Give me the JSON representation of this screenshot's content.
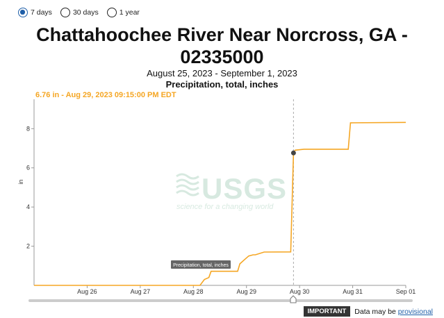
{
  "range_options": [
    {
      "label": "7 days",
      "checked": true
    },
    {
      "label": "30 days",
      "checked": false
    },
    {
      "label": "1 year",
      "checked": false
    }
  ],
  "footer": {
    "badge": "IMPORTANT",
    "note": "Data may be",
    "link": "provisional"
  },
  "watermark": {
    "text": "USGS",
    "tagline": "science for a changing world"
  },
  "tooltip_label": "Precipitation, total, inches",
  "readout": "6.76 in - Aug 29, 2023 09:15:00 PM EDT",
  "colors": {
    "series": "#f5a623",
    "marker": "#444444",
    "accent": "#1f5fa8"
  },
  "chart_data": {
    "type": "line",
    "title": "Chattahoochee River Near Norcross, GA - 02335000",
    "subtitle": "August 25, 2023 - September 1, 2023",
    "parameter": "Precipitation, total, inches",
    "ylabel": "in",
    "ylim": [
      0,
      9.5
    ],
    "yticks": [
      2,
      4,
      6,
      8
    ],
    "xlim": [
      "2023-08-25",
      "2023-09-01"
    ],
    "xticks": [
      "Aug 26",
      "Aug 27",
      "Aug 28",
      "Aug 29",
      "Aug 30",
      "Aug 31",
      "Sep 01"
    ],
    "series": [
      {
        "x": [
          "2023-08-25",
          "2023-08-28",
          "2023-08-28 03:00",
          "2023-08-28 05:00",
          "2023-08-28 07:00",
          "2023-08-28 08:00",
          "2023-08-28 20:00",
          "2023-08-28 21:00",
          "2023-08-28 23:00",
          "2023-08-29 01:00",
          "2023-08-29 03:00",
          "2023-08-29 04:00",
          "2023-08-29 08:00",
          "2023-08-29 20:00",
          "2023-08-29 21:15",
          "2023-08-29 22:00",
          "2023-08-30 02:00",
          "2023-08-30 22:00",
          "2023-08-30 23:00",
          "2023-09-01"
        ],
        "y": [
          0,
          0,
          0,
          0.3,
          0.4,
          0.72,
          0.72,
          1.1,
          1.3,
          1.5,
          1.56,
          1.56,
          1.7,
          1.71,
          6.76,
          6.9,
          6.95,
          6.95,
          8.3,
          8.32
        ]
      }
    ],
    "highlight": {
      "x": "2023-08-29 21:15",
      "y": 6.76
    },
    "grid": false,
    "legend": "none"
  }
}
